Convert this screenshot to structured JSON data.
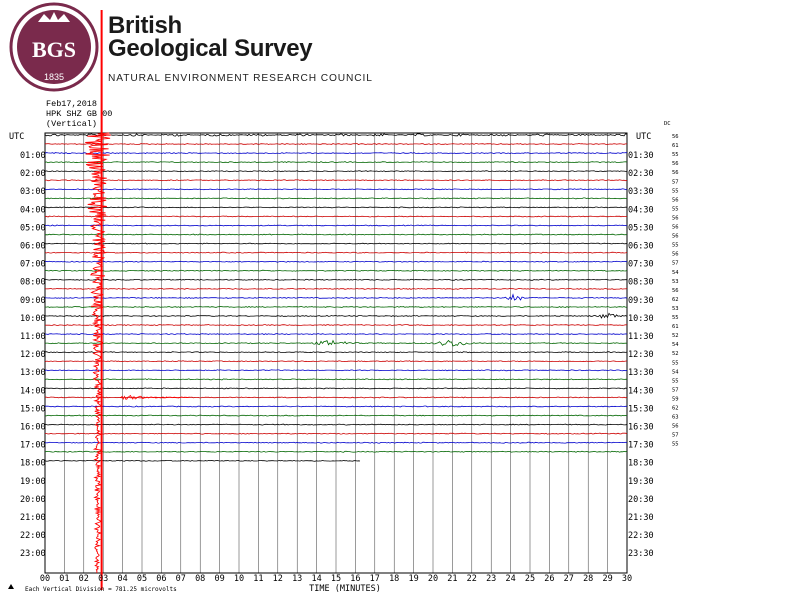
{
  "header": {
    "org_line1": "British",
    "org_line2": "Geological Survey",
    "council": "NATURAL ENVIRONMENT RESEARCH COUNCIL",
    "logo_text": "BGS",
    "logo_year": "1835"
  },
  "chart_data": {
    "type": "line",
    "title_lines": [
      "Feb17,2018",
      "HPK SHZ GB 00",
      "(Vertical)"
    ],
    "left_axis_label": "UTC",
    "right_axis_label": "UTC",
    "dc_label": "DC",
    "xlabel": "TIME (MINUTES)",
    "footer": "Each Vertical Division =  781.25 microvolts",
    "x_ticks": [
      "00",
      "01",
      "02",
      "03",
      "04",
      "05",
      "06",
      "07",
      "08",
      "09",
      "10",
      "11",
      "12",
      "13",
      "14",
      "15",
      "16",
      "17",
      "18",
      "19",
      "20",
      "21",
      "22",
      "23",
      "24",
      "25",
      "26",
      "27",
      "28",
      "29",
      "30"
    ],
    "left_hour_labels": [
      "01:00",
      "02:00",
      "03:00",
      "04:00",
      "05:00",
      "06:00",
      "07:00",
      "08:00",
      "09:00",
      "10:00",
      "11:00",
      "12:00",
      "13:00",
      "14:00",
      "15:00",
      "16:00",
      "17:00",
      "18:00",
      "19:00",
      "20:00",
      "21:00",
      "22:00",
      "23:00"
    ],
    "right_hour_labels": [
      "01:30",
      "02:30",
      "03:30",
      "04:30",
      "05:30",
      "06:30",
      "07:30",
      "08:30",
      "09:30",
      "10:30",
      "11:30",
      "12:30",
      "13:30",
      "14:30",
      "15:30",
      "16:30",
      "17:30",
      "18:30",
      "19:30",
      "20:30",
      "21:30",
      "22:30",
      "23:30"
    ],
    "dc_offsets": [
      "56",
      "61",
      "55",
      "56",
      "56",
      "57",
      "55",
      "56",
      "55",
      "56",
      "56",
      "56",
      "55",
      "56",
      "57",
      "54",
      "53",
      "56",
      "62",
      "53",
      "55",
      "61",
      "52",
      "54",
      "52",
      "55",
      "54",
      "55",
      "57",
      "59",
      "62",
      "63",
      "56",
      "57",
      "55"
    ],
    "trace_colors": [
      "#000000",
      "#cc0000",
      "#0000cc",
      "#006600"
    ],
    "trace_count": 37,
    "events": [
      {
        "type": "teleseismic",
        "start_minute": 2.3,
        "color": "#ff0000"
      },
      {
        "type": "regional",
        "trace": 23,
        "minute": 14.8
      },
      {
        "type": "regional",
        "trace": 23,
        "minute": 21.0
      },
      {
        "type": "local",
        "trace": 18,
        "minute": 24.2
      },
      {
        "type": "local",
        "trace": 20,
        "minute": 29.0
      }
    ]
  }
}
